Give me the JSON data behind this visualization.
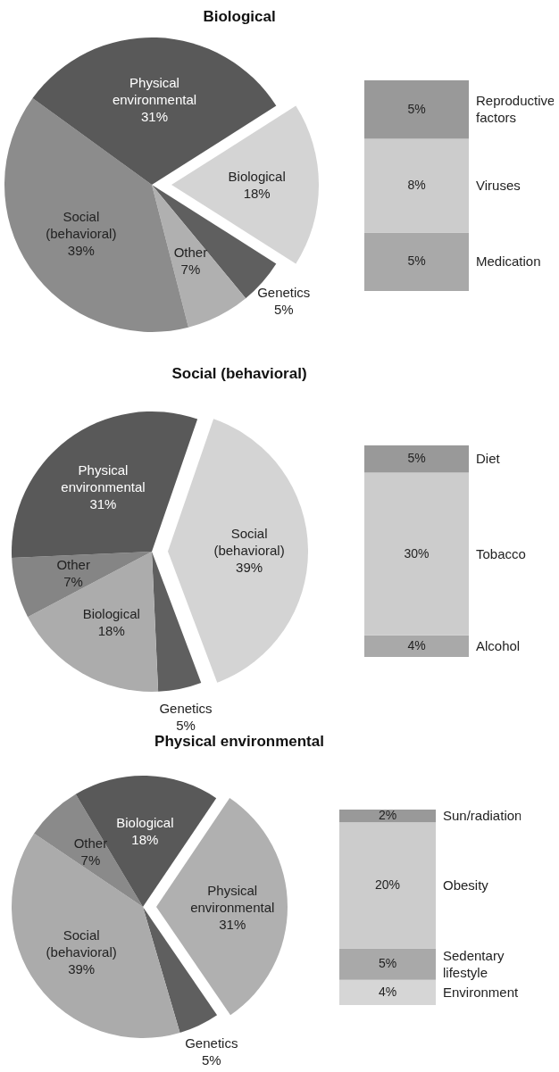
{
  "chart_data": [
    {
      "type": "pie",
      "title": "Biological",
      "categories": [
        "Biological",
        "Genetics",
        "Other",
        "Social (behavioral)",
        "Physical environmental"
      ],
      "values": [
        18,
        5,
        7,
        39,
        31
      ],
      "value_labels": [
        "18%",
        "5%",
        "7%",
        "39%",
        "31%"
      ],
      "colors": [
        "#d4d4d4",
        "#5f5f5f",
        "#b0b0b0",
        "#8c8c8c",
        "#595959"
      ]
    },
    {
      "type": "bar",
      "stacked": true,
      "tick_labels": false,
      "categories": [
        null
      ],
      "series": [
        {
          "name": "Medication",
          "color": "#a9a9a9",
          "values": [
            5
          ],
          "value_labels": [
            "5%"
          ]
        },
        {
          "name": "Viruses",
          "color": "#cccccc",
          "values": [
            8
          ],
          "value_labels": [
            "8%"
          ]
        },
        {
          "name": "Reproductive factors",
          "color": "#999999",
          "values": [
            5
          ],
          "value_labels": [
            "5%"
          ]
        }
      ]
    },
    {
      "type": "pie",
      "title": "Social (behavioral)",
      "categories": [
        "Social (behavioral)",
        "Genetics",
        "Biological",
        "Other",
        "Physical environmental"
      ],
      "values": [
        39,
        5,
        18,
        7,
        31
      ],
      "value_labels": [
        "39%",
        "5%",
        "18%",
        "7%",
        "31%"
      ],
      "colors": [
        "#d4d4d4",
        "#5f5f5f",
        "#acacac",
        "#858585",
        "#595959"
      ]
    },
    {
      "type": "bar",
      "stacked": true,
      "tick_labels": false,
      "categories": [
        null
      ],
      "series": [
        {
          "name": "Alcohol",
          "color": "#a9a9a9",
          "values": [
            4
          ],
          "value_labels": [
            "4%"
          ]
        },
        {
          "name": "Tobacco",
          "color": "#cccccc",
          "values": [
            30
          ],
          "value_labels": [
            "30%"
          ]
        },
        {
          "name": "Diet",
          "color": "#999999",
          "values": [
            5
          ],
          "value_labels": [
            "5%"
          ]
        }
      ]
    },
    {
      "type": "pie",
      "title": "Physical environmental",
      "categories": [
        "Physical environmental",
        "Genetics",
        "Social (behavioral)",
        "Other",
        "Biological"
      ],
      "values": [
        31,
        5,
        39,
        7,
        18
      ],
      "value_labels": [
        "31%",
        "5%",
        "39%",
        "7%",
        "18%"
      ],
      "colors": [
        "#b0b0b0",
        "#5f5f5f",
        "#ababab",
        "#8a8a8a",
        "#595959"
      ]
    },
    {
      "type": "bar",
      "stacked": true,
      "tick_labels": false,
      "categories": [
        null
      ],
      "series": [
        {
          "name": "Environment",
          "color": "#d6d6d6",
          "values": [
            4
          ],
          "value_labels": [
            "4%"
          ]
        },
        {
          "name": "Sedentary lifestyle",
          "color": "#a9a9a9",
          "values": [
            5
          ],
          "value_labels": [
            "5%"
          ]
        },
        {
          "name": "Obesity",
          "color": "#cccccc",
          "values": [
            20
          ],
          "value_labels": [
            "20%"
          ]
        },
        {
          "name": "Sun/radiation",
          "color": "#999999",
          "values": [
            2
          ],
          "value_labels": [
            "2%"
          ]
        }
      ]
    }
  ]
}
